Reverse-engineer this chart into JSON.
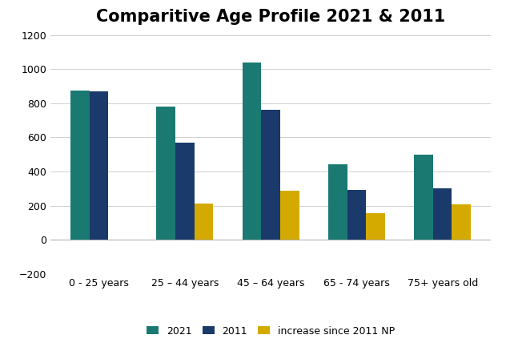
{
  "title": "Comparitive Age Profile 2021 & 2011",
  "categories": [
    "0 - 25 years",
    "25 – 44 years",
    "45 – 64 years",
    "65 - 74 years",
    "75+ years old"
  ],
  "series": {
    "2021": [
      875,
      780,
      1040,
      440,
      500
    ],
    "2011": [
      870,
      570,
      760,
      290,
      300
    ],
    "increase since 2011 NP": [
      0,
      210,
      285,
      155,
      205
    ]
  },
  "colors": {
    "2021": "#1a7a72",
    "2011": "#1a3a6b",
    "increase since 2011 NP": "#d4aa00"
  },
  "ylim": [
    -200,
    1200
  ],
  "yticks": [
    -200,
    0,
    200,
    400,
    600,
    800,
    1000,
    1200
  ],
  "legend_labels": [
    "2021",
    "2011",
    "increase since 2011 NP"
  ],
  "background_color": "#ffffff",
  "bar_width": 0.22,
  "title_fontsize": 15
}
